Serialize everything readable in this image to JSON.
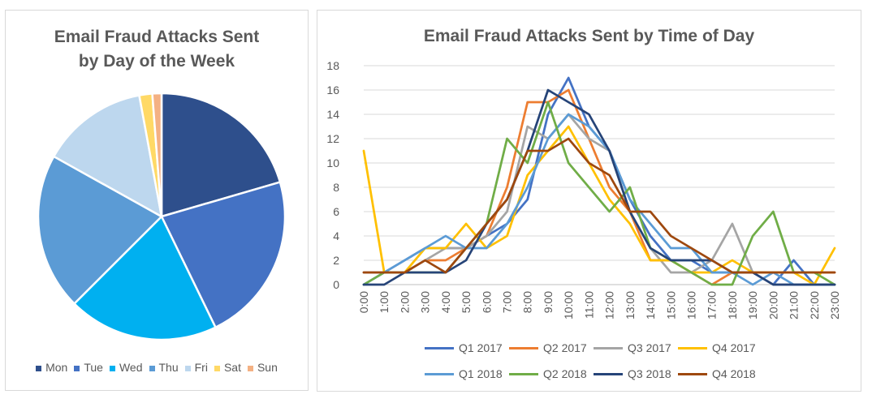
{
  "chart_data": [
    {
      "type": "pie",
      "title_lines": [
        "Email Fraud Attacks Sent",
        "by Day of the Week"
      ],
      "categories": [
        "Mon",
        "Tue",
        "Wed",
        "Thu",
        "Fri",
        "Sat",
        "Sun"
      ],
      "values": [
        20.5,
        22.3,
        19.7,
        20.6,
        14.0,
        1.7,
        1.2
      ],
      "colors": [
        "#2e4f8c",
        "#4472c4",
        "#00b0f0",
        "#5b9bd5",
        "#bdd7ee",
        "#ffd966",
        "#f4b183"
      ],
      "legend": "bottom"
    },
    {
      "type": "line",
      "title": "Email Fraud Attacks Sent by Time of Day",
      "categories": [
        "0:00",
        "1:00",
        "2:00",
        "3:00",
        "4:00",
        "5:00",
        "6:00",
        "7:00",
        "8:00",
        "9:00",
        "10:00",
        "11:00",
        "12:00",
        "13:00",
        "14:00",
        "15:00",
        "16:00",
        "17:00",
        "18:00",
        "19:00",
        "20:00",
        "21:00",
        "22:00",
        "23:00"
      ],
      "ylim": [
        0,
        18
      ],
      "yticks": [
        0,
        2,
        4,
        6,
        8,
        10,
        12,
        14,
        16,
        18
      ],
      "grid": true,
      "legend": "bottom",
      "series": [
        {
          "name": "Q1 2017",
          "color": "#4472c4",
          "values": [
            0,
            1,
            2,
            3,
            3,
            3,
            4,
            5,
            7,
            14,
            17,
            13,
            11,
            7,
            4,
            2,
            2,
            1,
            1,
            1,
            0,
            2,
            0,
            0
          ]
        },
        {
          "name": "Q2 2017",
          "color": "#ed7d31",
          "values": [
            1,
            1,
            1,
            2,
            2,
            3,
            4,
            8,
            15,
            15,
            16,
            12,
            8,
            6,
            2,
            2,
            1,
            0,
            1,
            1,
            1,
            1,
            1,
            1
          ]
        },
        {
          "name": "Q3 2017",
          "color": "#a5a5a5",
          "values": [
            1,
            1,
            1,
            2,
            3,
            3,
            4,
            6,
            13,
            12,
            14,
            12,
            11,
            6,
            3,
            1,
            1,
            2,
            5,
            1,
            0,
            0,
            0,
            0
          ]
        },
        {
          "name": "Q4 2017",
          "color": "#ffc000",
          "values": [
            11,
            1,
            1,
            3,
            3,
            5,
            3,
            4,
            9,
            11,
            13,
            10,
            7,
            5,
            2,
            2,
            1,
            1,
            2,
            1,
            1,
            1,
            0,
            3
          ]
        },
        {
          "name": "Q1 2018",
          "color": "#5b9bd5",
          "values": [
            0,
            1,
            2,
            3,
            4,
            3,
            3,
            5,
            8,
            12,
            14,
            13,
            11,
            7,
            5,
            3,
            3,
            1,
            1,
            0,
            1,
            0,
            0,
            0
          ]
        },
        {
          "name": "Q2 2018",
          "color": "#70ad47",
          "values": [
            0,
            1,
            1,
            1,
            1,
            3,
            5,
            12,
            10,
            15,
            10,
            8,
            6,
            8,
            3,
            2,
            1,
            0,
            0,
            4,
            6,
            1,
            1,
            0
          ]
        },
        {
          "name": "Q3 2018",
          "color": "#264478",
          "values": [
            0,
            0,
            1,
            1,
            1,
            2,
            5,
            7,
            11,
            16,
            15,
            14,
            11,
            6,
            3,
            2,
            2,
            2,
            1,
            1,
            0,
            0,
            0,
            0
          ]
        },
        {
          "name": "Q4 2018",
          "color": "#9e480e",
          "values": [
            1,
            1,
            1,
            2,
            1,
            3,
            5,
            7,
            11,
            11,
            12,
            10,
            9,
            6,
            6,
            4,
            3,
            2,
            1,
            1,
            1,
            1,
            1,
            1
          ]
        }
      ]
    }
  ]
}
